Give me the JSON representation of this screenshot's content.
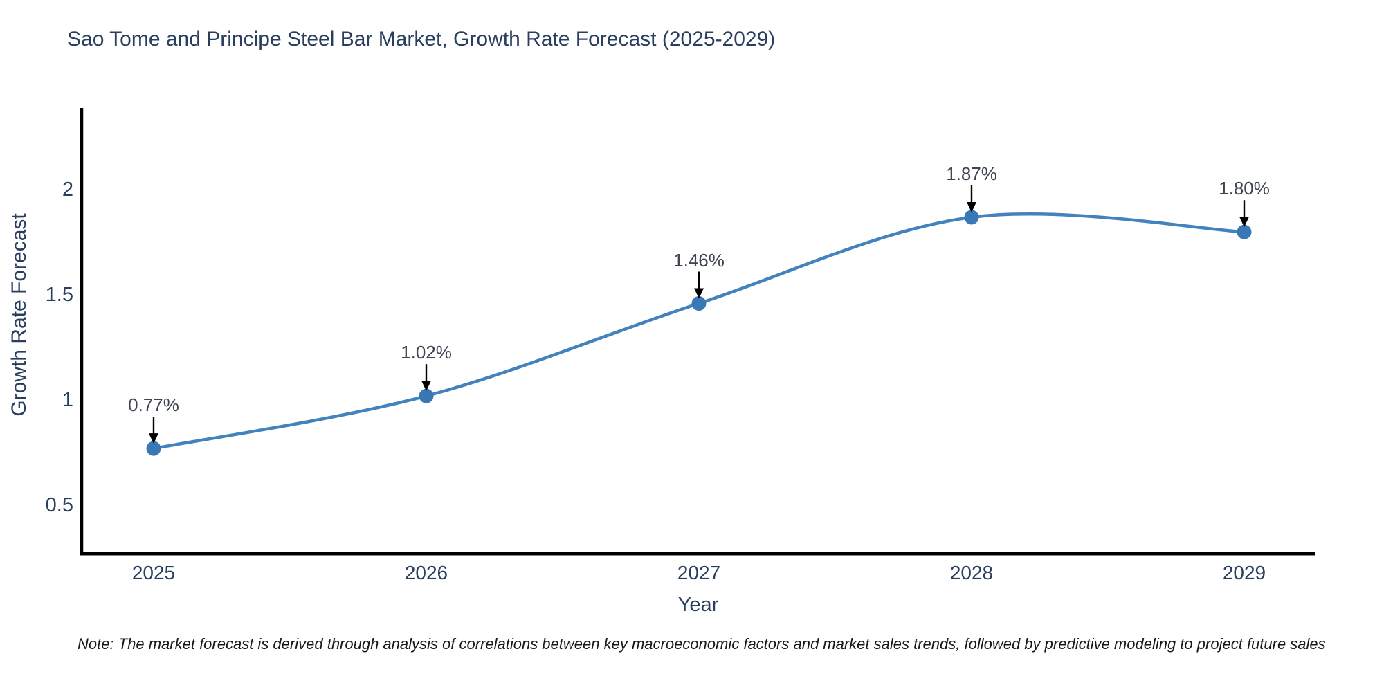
{
  "note": "Note: The market forecast is derived through analysis of correlations between key macroeconomic factors and market sales trends, followed by predictive modeling to project future sales",
  "chart_data": {
    "type": "line",
    "title": "Sao Tome and Principe Steel Bar Market, Growth Rate Forecast (2025-2029)",
    "xlabel": "Year",
    "ylabel": "Growth Rate Forecast",
    "x": [
      2025,
      2026,
      2027,
      2028,
      2029
    ],
    "series": [
      {
        "name": "Growth Rate Forecast",
        "values": [
          0.77,
          1.02,
          1.46,
          1.87,
          1.8
        ]
      }
    ],
    "point_labels": [
      "0.77%",
      "1.02%",
      "1.46%",
      "1.87%",
      "1.80%"
    ],
    "xtick_labels": [
      "2025",
      "2026",
      "2027",
      "2028",
      "2029"
    ],
    "yticks": [
      0.5,
      1,
      1.5,
      2
    ],
    "ytick_labels": [
      "0.5",
      "1",
      "1.5",
      "2"
    ],
    "ylim": [
      0.27,
      2.39
    ],
    "grid": false,
    "legend": "none",
    "line_shape": "spline",
    "annotation_style": "value label with black arrow pointing down to marker",
    "colors": {
      "line": "#4282bd",
      "marker": "#3a78b5",
      "axis_spine": "#010101",
      "arrow": "#000000",
      "text": "#2a3f5f",
      "annotation_text": "#3d4450",
      "background": "#ffffff"
    }
  }
}
